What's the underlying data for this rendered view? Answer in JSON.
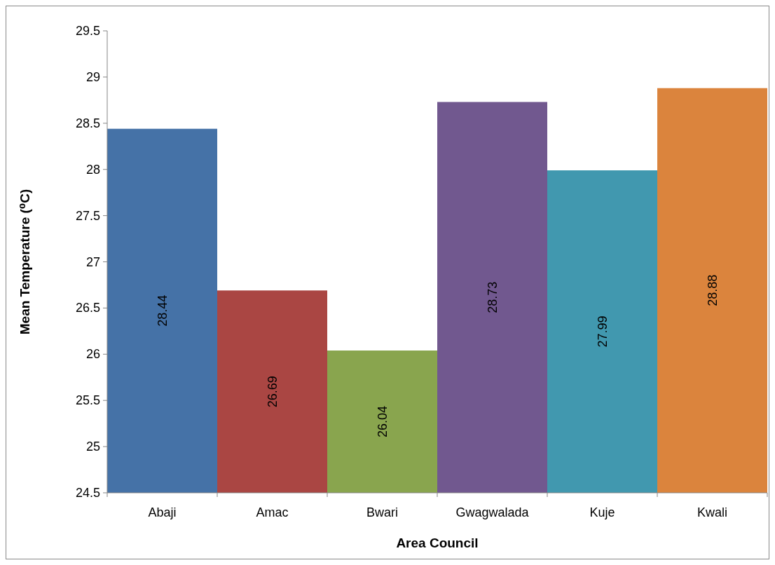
{
  "chart_data": {
    "type": "bar",
    "xlabel": "Area Council",
    "ylabel": "Mean Temperature (⁰C)",
    "categories": [
      "Abaji",
      "Amac",
      "Bwari",
      "Gwagwalada",
      "Kuje",
      "Kwali"
    ],
    "values": [
      28.44,
      26.69,
      26.04,
      28.73,
      27.99,
      28.88
    ],
    "colors": [
      "#4572a7",
      "#aa4643",
      "#89a54e",
      "#71588f",
      "#4198af",
      "#db843d"
    ],
    "ylim": [
      24.5,
      29.5
    ],
    "yticks": [
      24.5,
      25,
      25.5,
      26,
      26.5,
      27,
      27.5,
      28,
      28.5,
      29,
      29.5
    ],
    "data_labels": true
  }
}
